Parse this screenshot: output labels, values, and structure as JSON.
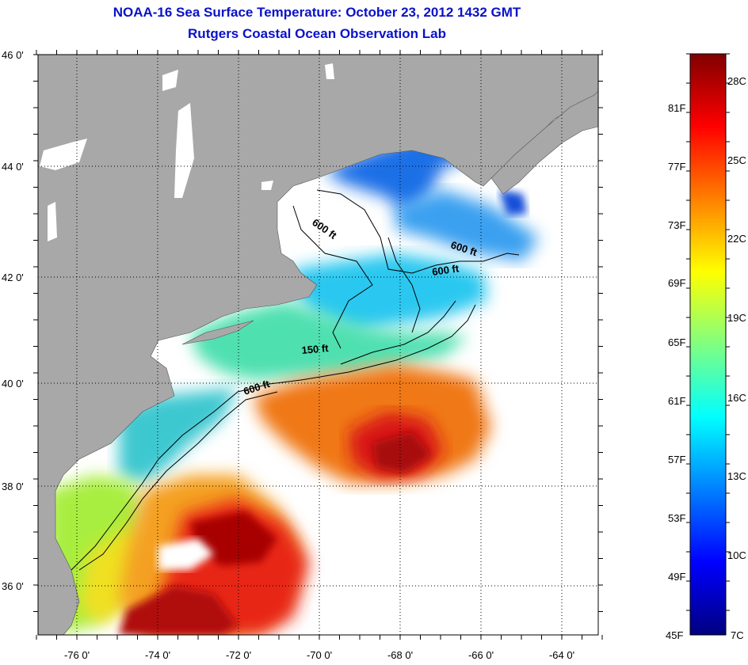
{
  "title": "NOAA-16 Sea Surface Temperature:  October 23, 2012 1432 GMT",
  "subtitle": "Rutgers Coastal Ocean Observation Lab",
  "map": {
    "lat_ticks": [
      "46 0'",
      "44 0'",
      "42 0'",
      "40 0'",
      "38 0'",
      "36 0'"
    ],
    "lon_ticks": [
      "-76 0'",
      "-74 0'",
      "-72 0'",
      "-70 0'",
      "-68 0'",
      "-66 0'",
      "-64 0'"
    ],
    "isobath_labels": [
      "600 ft",
      "600 ft",
      "600 ft",
      "150 ft",
      "600 ft"
    ],
    "colors": {
      "land": "#a8a8a8",
      "cloud": "#ffffff",
      "isobath": "#000000"
    }
  },
  "colorbar": {
    "fahrenheit": [
      "81F",
      "77F",
      "73F",
      "69F",
      "65F",
      "61F",
      "57F",
      "53F",
      "49F",
      "45F"
    ],
    "celsius": [
      "28C",
      "25C",
      "22C",
      "19C",
      "16C",
      "13C",
      "10C",
      "7C"
    ],
    "colors": [
      "#000080",
      "#0000ff",
      "#0080ff",
      "#00ffff",
      "#80ff80",
      "#ffff00",
      "#ff8000",
      "#ff0000",
      "#800000"
    ]
  }
}
